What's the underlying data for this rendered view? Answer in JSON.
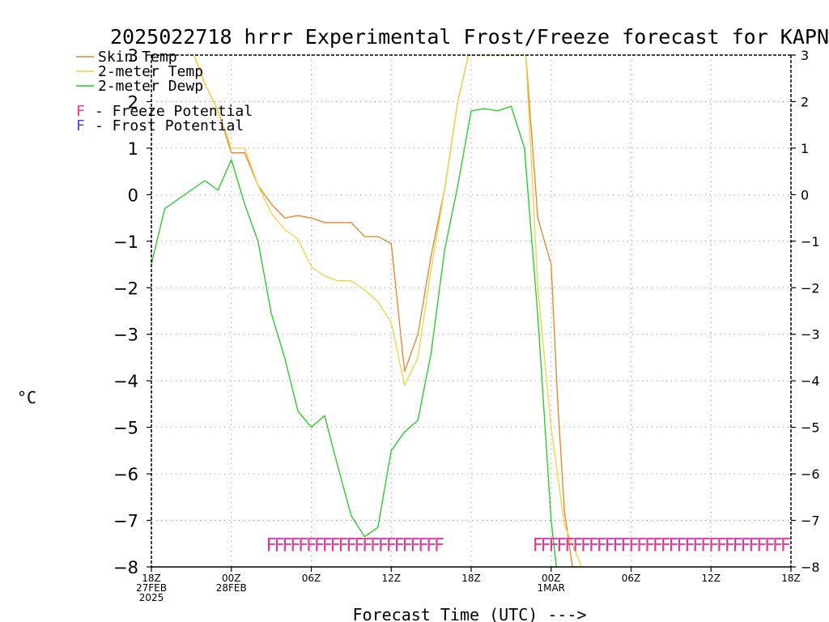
{
  "chart_data": {
    "type": "line",
    "title": "2025022718 hrrr Experimental Frost/Freeze forecast for KAPN",
    "xlabel": "Forecast Time (UTC) --->",
    "ylabel": "°C",
    "ylim": [
      -8,
      3
    ],
    "xlim": [
      0,
      48
    ],
    "yticks": [
      -8,
      -7,
      -6,
      -5,
      -4,
      -3,
      -2,
      -1,
      0,
      1,
      2,
      3
    ],
    "ytick_labels": [
      "−8",
      "−7",
      "−6",
      "−5",
      "−4",
      "−3",
      "−2",
      "−1",
      "0",
      "1",
      "2",
      "3"
    ],
    "xticks": [
      {
        "x": 0,
        "lines": [
          "18Z",
          "27FEB",
          "2025"
        ]
      },
      {
        "x": 6,
        "lines": [
          "00Z",
          "28FEB"
        ]
      },
      {
        "x": 12,
        "lines": [
          "06Z"
        ]
      },
      {
        "x": 18,
        "lines": [
          "12Z"
        ]
      },
      {
        "x": 24,
        "lines": [
          "18Z"
        ]
      },
      {
        "x": 30,
        "lines": [
          "00Z",
          "1MAR"
        ]
      },
      {
        "x": 36,
        "lines": [
          "06Z"
        ]
      },
      {
        "x": 42,
        "lines": [
          "12Z"
        ]
      },
      {
        "x": 48,
        "lines": [
          "18Z"
        ]
      }
    ],
    "grid": true,
    "legend_position": "top-left",
    "series": [
      {
        "name": "Skin Temp",
        "color": "#e8802a",
        "x": [
          3.2,
          4,
          5,
          6,
          7,
          8,
          9,
          10,
          11,
          12,
          13,
          14,
          15,
          16,
          17,
          18,
          19,
          20,
          21,
          22,
          23,
          23.8,
          28.1,
          29,
          30,
          30.5,
          31,
          31.6
        ],
        "values": [
          3,
          2.4,
          1.8,
          0.9,
          0.9,
          0.2,
          -0.2,
          -0.5,
          -0.45,
          -0.5,
          -0.6,
          -0.6,
          -0.6,
          -0.9,
          -0.9,
          -1.05,
          -3.8,
          -3.0,
          -1.3,
          0.1,
          2.0,
          3,
          3,
          -0.5,
          -1.5,
          -4.5,
          -6.8,
          -8
        ]
      },
      {
        "name": "2-meter Temp",
        "color": "#f2d23c",
        "x": [
          3.2,
          4,
          5,
          6,
          7,
          8,
          9,
          10,
          11,
          12,
          13,
          14,
          15,
          16,
          17,
          18,
          19,
          20,
          21,
          22,
          23,
          23.8,
          28.1,
          29,
          30,
          31,
          32.3
        ],
        "values": [
          3,
          2.4,
          1.8,
          1.0,
          1.0,
          0.2,
          -0.4,
          -0.75,
          -0.95,
          -1.55,
          -1.75,
          -1.85,
          -1.85,
          -2.05,
          -2.3,
          -2.75,
          -4.1,
          -3.5,
          -1.6,
          0.1,
          2.0,
          3,
          3,
          -2.0,
          -5.0,
          -7.1,
          -8
        ]
      },
      {
        "name": "2-meter Dewp",
        "color": "#1ecb1e",
        "x": [
          0,
          1,
          2,
          3,
          4,
          5,
          6,
          7,
          8,
          9,
          10,
          11,
          12,
          13,
          14,
          15,
          16,
          17,
          18,
          19,
          20,
          21,
          22,
          23,
          24,
          25,
          26,
          27,
          28,
          29,
          30,
          30.4
        ],
        "values": [
          -1.5,
          -0.3,
          -0.1,
          0.1,
          0.3,
          0.1,
          0.75,
          -0.2,
          -1.0,
          -2.55,
          -3.5,
          -4.65,
          -5.0,
          -4.75,
          -5.85,
          -6.9,
          -7.35,
          -7.15,
          -5.5,
          -5.1,
          -4.85,
          -3.4,
          -1.2,
          0.2,
          1.8,
          1.85,
          1.8,
          1.9,
          1.0,
          -2.6,
          -7.0,
          -8
        ]
      }
    ],
    "legend": [
      {
        "name": "Skin Temp",
        "color": "#e8802a",
        "type": "line"
      },
      {
        "name": "2-meter Temp",
        "color": "#f2d23c",
        "type": "line"
      },
      {
        "name": "2-meter Dewp",
        "color": "#1ecb1e",
        "type": "line"
      },
      {
        "letter": "F",
        "name": "Freeze Potential",
        "color": "#e0399a",
        "type": "letter"
      },
      {
        "letter": "F",
        "name": "Frost Potential",
        "color": "#4a4ae0",
        "type": "letter"
      }
    ],
    "freeze_markers": {
      "letter": "F",
      "color": "#e0399a",
      "y": -7.5,
      "x": [
        9,
        9.6,
        10.2,
        10.8,
        11.4,
        12,
        12.6,
        13.2,
        13.8,
        14.4,
        15,
        15.6,
        16.2,
        16.8,
        17.4,
        18,
        18.6,
        19.2,
        19.8,
        20.4,
        21,
        21.6,
        29,
        29.6,
        30.2,
        30.8,
        31.4,
        32,
        32.6,
        33.2,
        33.8,
        34.4,
        35,
        35.6,
        36.2,
        36.8,
        37.4,
        38,
        38.6,
        39.2,
        39.8,
        40.4,
        41,
        41.6,
        42.2,
        42.8,
        43.4,
        44,
        44.6,
        45.2,
        45.8,
        46.4,
        47,
        47.6
      ]
    }
  }
}
